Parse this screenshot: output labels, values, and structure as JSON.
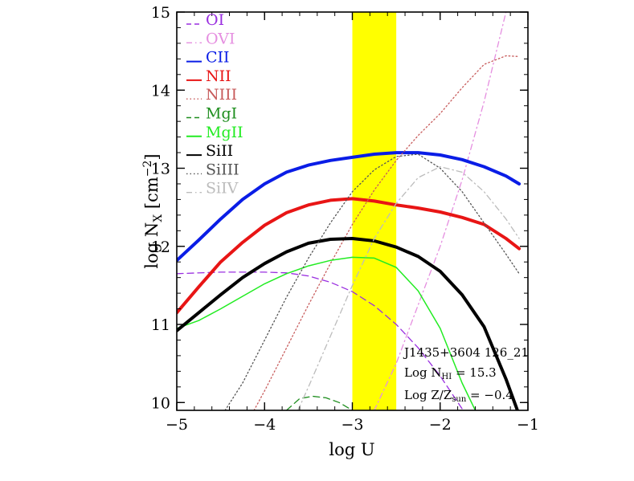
{
  "chart_data": {
    "type": "line",
    "title": "",
    "xlabel": "log U",
    "ylabel_main": "log N",
    "ylabel_sub": "X",
    "ylabel_unit_pre": " [cm",
    "ylabel_unit_sup": "−2",
    "ylabel_unit_post": "]",
    "xlim": [
      -5,
      -1
    ],
    "ylim": [
      9.9,
      15
    ],
    "x_ticks": [
      -5,
      -4,
      -3,
      -2,
      -1
    ],
    "x_tick_labels": [
      "−5",
      "−4",
      "−3",
      "−2",
      "−1"
    ],
    "y_ticks": [
      10,
      11,
      12,
      13,
      14,
      15
    ],
    "y_tick_labels": [
      "10",
      "11",
      "12",
      "13",
      "14",
      "15"
    ],
    "highlight_band": {
      "x": [
        -3.0,
        -2.5
      ],
      "color": "#ffff00"
    },
    "legend_placement": "top-left",
    "series": [
      {
        "name": "OI",
        "color": "#9a2fe0",
        "style": "dashed",
        "x": [
          -5.0,
          -4.5,
          -4.0,
          -3.75,
          -3.5,
          -3.25,
          -3.0,
          -2.75,
          -2.5,
          -2.25,
          -2.0,
          -1.75
        ],
        "y": [
          11.65,
          11.67,
          11.67,
          11.66,
          11.62,
          11.54,
          11.42,
          11.24,
          11.0,
          10.7,
          10.34,
          9.92
        ]
      },
      {
        "name": "OVI",
        "color": "#e58fe0",
        "style": "dashdot",
        "x": [
          -2.75,
          -2.5,
          -2.25,
          -2.0,
          -1.75,
          -1.5,
          -1.25
        ],
        "y": [
          9.9,
          10.5,
          11.25,
          12.0,
          12.85,
          13.85,
          15.0
        ]
      },
      {
        "name": "CII",
        "color": "#0a1de6",
        "style": "solid",
        "x": [
          -5.0,
          -4.75,
          -4.5,
          -4.25,
          -4.0,
          -3.75,
          -3.5,
          -3.25,
          -3.0,
          -2.75,
          -2.5,
          -2.25,
          -2.0,
          -1.75,
          -1.5,
          -1.25,
          -1.1
        ],
        "y": [
          11.82,
          12.08,
          12.35,
          12.6,
          12.8,
          12.95,
          13.04,
          13.1,
          13.14,
          13.18,
          13.2,
          13.2,
          13.17,
          13.11,
          13.02,
          12.9,
          12.8
        ]
      },
      {
        "name": "NII",
        "color": "#e81515",
        "style": "solid",
        "x": [
          -5.0,
          -4.75,
          -4.5,
          -4.25,
          -4.0,
          -3.75,
          -3.5,
          -3.25,
          -3.0,
          -2.75,
          -2.5,
          -2.25,
          -2.0,
          -1.75,
          -1.5,
          -1.25,
          -1.1
        ],
        "y": [
          11.15,
          11.48,
          11.8,
          12.05,
          12.27,
          12.43,
          12.53,
          12.59,
          12.61,
          12.58,
          12.53,
          12.49,
          12.44,
          12.37,
          12.28,
          12.1,
          11.97
        ]
      },
      {
        "name": "NIII",
        "color": "#c75a5a",
        "style": "dotted",
        "x": [
          -4.12,
          -4.0,
          -3.75,
          -3.5,
          -3.25,
          -3.0,
          -2.75,
          -2.5,
          -2.25,
          -2.0,
          -1.75,
          -1.5,
          -1.25,
          -1.1
        ],
        "y": [
          9.9,
          10.15,
          10.7,
          11.25,
          11.78,
          12.28,
          12.72,
          13.1,
          13.42,
          13.7,
          14.03,
          14.33,
          14.44,
          14.43
        ]
      },
      {
        "name": "MgI",
        "color": "#1e8e1e",
        "style": "dashed",
        "x": [
          -3.75,
          -3.6,
          -3.45,
          -3.3,
          -3.15,
          -3.0
        ],
        "y": [
          9.9,
          10.05,
          10.08,
          10.06,
          10.0,
          9.9
        ]
      },
      {
        "name": "MgII",
        "color": "#22ec22",
        "style": "solid",
        "x": [
          -5.0,
          -4.75,
          -4.5,
          -4.25,
          -4.0,
          -3.75,
          -3.5,
          -3.25,
          -3.0,
          -2.75,
          -2.5,
          -2.25,
          -2.0,
          -1.75,
          -1.6
        ],
        "y": [
          10.95,
          11.05,
          11.2,
          11.36,
          11.52,
          11.65,
          11.75,
          11.82,
          11.86,
          11.85,
          11.73,
          11.43,
          10.95,
          10.25,
          9.9
        ]
      },
      {
        "name": "SiII",
        "color": "#000000",
        "style": "solid",
        "x": [
          -5.0,
          -4.75,
          -4.5,
          -4.25,
          -4.0,
          -3.75,
          -3.5,
          -3.25,
          -3.0,
          -2.75,
          -2.5,
          -2.25,
          -2.0,
          -1.75,
          -1.5,
          -1.25,
          -1.12
        ],
        "y": [
          10.92,
          11.15,
          11.38,
          11.6,
          11.78,
          11.93,
          12.04,
          12.09,
          12.1,
          12.07,
          11.99,
          11.87,
          11.68,
          11.38,
          10.97,
          10.3,
          9.9
        ]
      },
      {
        "name": "SiIII",
        "color": "#555555",
        "style": "dotted",
        "x": [
          -4.45,
          -4.25,
          -4.0,
          -3.75,
          -3.5,
          -3.25,
          -3.0,
          -2.75,
          -2.5,
          -2.25,
          -2.0,
          -1.75,
          -1.5,
          -1.25,
          -1.1
        ],
        "y": [
          9.9,
          10.25,
          10.8,
          11.35,
          11.85,
          12.3,
          12.7,
          12.98,
          13.15,
          13.18,
          13.0,
          12.7,
          12.3,
          11.9,
          11.65
        ]
      },
      {
        "name": "SiIV",
        "color": "#bcbcbc",
        "style": "dashdot",
        "x": [
          -3.62,
          -3.5,
          -3.25,
          -3.0,
          -2.75,
          -2.5,
          -2.25,
          -2.0,
          -1.75,
          -1.5,
          -1.25,
          -1.1
        ],
        "y": [
          9.9,
          10.2,
          10.85,
          11.5,
          12.1,
          12.55,
          12.88,
          13.02,
          12.95,
          12.7,
          12.35,
          12.1
        ]
      }
    ],
    "annotation": {
      "line1": "J1435+3604 126_21",
      "line2_pre": "Log N",
      "line2_sub": "HI",
      "line2_post": " = 15.3",
      "line3_pre": "Log Z/Z",
      "line3_sub": "sun",
      "line3_post": " = −0.4"
    }
  }
}
